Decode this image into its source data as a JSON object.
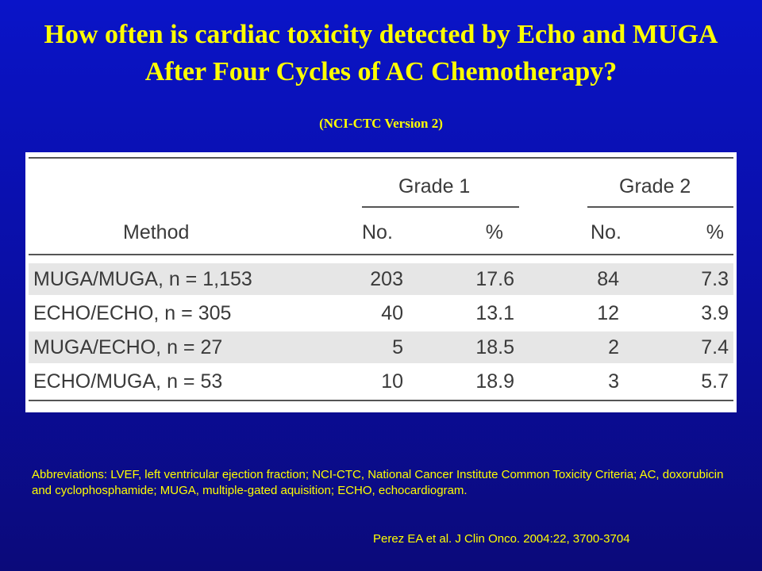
{
  "title": {
    "line1": "How often is cardiac toxicity detected by Echo and MUGA",
    "line2": "After Four Cycles of AC Chemotherapy?"
  },
  "subtitle": "(NCI-CTC Version 2)",
  "table": {
    "group_headers": [
      "Grade 1",
      "Grade 2"
    ],
    "method_header": "Method",
    "sub_headers": [
      "No.",
      "%",
      "No.",
      "%"
    ],
    "rows": [
      {
        "method": "MUGA/MUGA, n = 1,153",
        "g1_no": "203",
        "g1_pct": "17.6",
        "g2_no": "84",
        "g2_pct": "7.3"
      },
      {
        "method": "ECHO/ECHO, n = 305",
        "g1_no": "40",
        "g1_pct": "13.1",
        "g2_no": "12",
        "g2_pct": "3.9"
      },
      {
        "method": "MUGA/ECHO, n = 27",
        "g1_no": "5",
        "g1_pct": "18.5",
        "g2_no": "2",
        "g2_pct": "7.4"
      },
      {
        "method": "ECHO/MUGA, n = 53",
        "g1_no": "10",
        "g1_pct": "18.9",
        "g2_no": "3",
        "g2_pct": "5.7"
      }
    ]
  },
  "abbreviations": "Abbreviations: LVEF, left ventricular ejection fraction; NCI-CTC, National Cancer Institute Common Toxicity Criteria; AC, doxorubicin and cyclophosphamide; MUGA, multiple-gated aquisition; ECHO, echocardiogram.",
  "citation": "Perez EA et al. J Clin Onco. 2004:22, 3700-3704"
}
